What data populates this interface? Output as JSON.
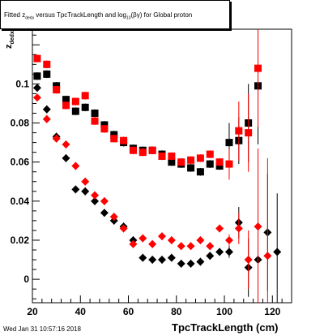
{
  "title": "Fitted z_dedx versus TpcTrackLength and log10(βγ) for Global proton",
  "title_parts": {
    "pre": "Fitted z",
    "sub1": "dedx",
    "mid": " versus TpcTrackLength and log",
    "sub2": "10",
    "post": "(βγ) for Global proton"
  },
  "footer": "Wed Jan 31 10:57:16 2018",
  "chart_data": {
    "type": "scatter",
    "title": "Fitted z_dedx versus TpcTrackLength and log10(βγ) for Global proton",
    "xlabel": "TpcTrackLength (cm)",
    "ylabel": "z_dedx",
    "xlim": [
      20,
      128
    ],
    "ylim": [
      -0.012,
      0.128
    ],
    "xticks": [
      20,
      40,
      60,
      80,
      100,
      120
    ],
    "yticks": [
      0,
      0.02,
      0.04,
      0.06,
      0.08,
      0.1
    ],
    "grid": false,
    "series": [
      {
        "marker": "square",
        "color": "#000000",
        "points": [
          [
            22,
            0.104
          ],
          [
            26,
            0.105
          ],
          [
            30,
            0.099
          ],
          [
            34,
            0.092
          ],
          [
            38,
            0.086
          ],
          [
            42,
            0.088
          ],
          [
            46,
            0.085
          ],
          [
            50,
            0.079
          ],
          [
            54,
            0.074
          ],
          [
            58,
            0.07
          ],
          [
            62,
            0.067
          ],
          [
            66,
            0.066
          ],
          [
            70,
            0.066
          ],
          [
            74,
            0.064
          ],
          [
            78,
            0.06
          ],
          [
            82,
            0.059
          ],
          [
            86,
            0.057
          ],
          [
            90,
            0.055
          ],
          [
            94,
            0.059
          ],
          [
            98,
            0.058
          ],
          [
            102,
            0.07
          ],
          [
            106,
            0.071
          ],
          [
            110,
            0.08
          ],
          [
            114,
            0.099
          ]
        ],
        "err": [
          0.002,
          0.002,
          0.002,
          0.002,
          0.002,
          0.002,
          0.002,
          0.002,
          0.002,
          0.002,
          0.002,
          0.002,
          0.002,
          0.002,
          0.002,
          0.002,
          0.002,
          0.002,
          0.002,
          0.002,
          0.01,
          0.012,
          0.02,
          0.03
        ]
      },
      {
        "marker": "square",
        "color": "#ff0000",
        "points": [
          [
            22,
            0.113
          ],
          [
            26,
            0.11
          ],
          [
            30,
            0.097
          ],
          [
            34,
            0.089
          ],
          [
            38,
            0.091
          ],
          [
            42,
            0.094
          ],
          [
            46,
            0.081
          ],
          [
            50,
            0.077
          ],
          [
            54,
            0.072
          ],
          [
            58,
            0.071
          ],
          [
            62,
            0.066
          ],
          [
            66,
            0.065
          ],
          [
            70,
            0.066
          ],
          [
            74,
            0.063
          ],
          [
            78,
            0.063
          ],
          [
            82,
            0.06
          ],
          [
            86,
            0.061
          ],
          [
            90,
            0.062
          ],
          [
            94,
            0.064
          ],
          [
            98,
            0.06
          ],
          [
            102,
            0.059
          ],
          [
            106,
            0.076
          ],
          [
            110,
            0.075
          ],
          [
            114,
            0.108
          ]
        ],
        "err": [
          0.002,
          0.002,
          0.002,
          0.002,
          0.002,
          0.002,
          0.002,
          0.002,
          0.002,
          0.002,
          0.002,
          0.002,
          0.002,
          0.002,
          0.002,
          0.002,
          0.002,
          0.002,
          0.002,
          0.002,
          0.008,
          0.015,
          0.02,
          0.03
        ]
      },
      {
        "marker": "diamond",
        "color": "#000000",
        "points": [
          [
            22,
            0.098
          ],
          [
            26,
            0.087
          ],
          [
            30,
            0.073
          ],
          [
            34,
            0.062
          ],
          [
            38,
            0.046
          ],
          [
            42,
            0.045
          ],
          [
            46,
            0.04
          ],
          [
            50,
            0.034
          ],
          [
            54,
            0.03
          ],
          [
            58,
            0.027
          ],
          [
            62,
            0.02
          ],
          [
            66,
            0.011
          ],
          [
            70,
            0.01
          ],
          [
            74,
            0.01
          ],
          [
            78,
            0.011
          ],
          [
            82,
            0.008
          ],
          [
            86,
            0.008
          ],
          [
            90,
            0.009
          ],
          [
            94,
            0.012
          ],
          [
            98,
            0.014
          ],
          [
            102,
            0.014
          ],
          [
            106,
            0.029
          ],
          [
            110,
            0.006
          ],
          [
            114,
            0.01
          ],
          [
            118,
            0.024
          ],
          [
            122,
            0.014
          ]
        ],
        "err": [
          0.002,
          0.002,
          0.002,
          0.002,
          0.002,
          0.002,
          0.002,
          0.002,
          0.002,
          0.002,
          0.002,
          0.002,
          0.002,
          0.002,
          0.002,
          0.002,
          0.002,
          0.002,
          0.002,
          0.002,
          0.003,
          0.008,
          0.015,
          0.025,
          0.03,
          0.03
        ]
      },
      {
        "marker": "diamond",
        "color": "#ff0000",
        "points": [
          [
            22,
            0.093
          ],
          [
            26,
            0.082
          ],
          [
            30,
            0.072
          ],
          [
            34,
            0.069
          ],
          [
            38,
            0.058
          ],
          [
            42,
            0.05
          ],
          [
            46,
            0.043
          ],
          [
            50,
            0.04
          ],
          [
            54,
            0.032
          ],
          [
            58,
            0.026
          ],
          [
            62,
            0.018
          ],
          [
            66,
            0.021
          ],
          [
            70,
            0.018
          ],
          [
            74,
            0.022
          ],
          [
            78,
            0.02
          ],
          [
            82,
            0.017
          ],
          [
            86,
            0.017
          ],
          [
            90,
            0.02
          ],
          [
            94,
            0.017
          ],
          [
            98,
            0.026
          ],
          [
            102,
            0.02
          ],
          [
            106,
            0.026
          ],
          [
            110,
            0.01
          ],
          [
            114,
            0.027
          ],
          [
            118,
            0.012
          ]
        ],
        "err": [
          0.002,
          0.002,
          0.002,
          0.002,
          0.002,
          0.002,
          0.002,
          0.002,
          0.002,
          0.002,
          0.002,
          0.002,
          0.002,
          0.002,
          0.002,
          0.002,
          0.002,
          0.002,
          0.002,
          0.002,
          0.003,
          0.008,
          0.015,
          0.04,
          0.05
        ]
      }
    ]
  }
}
